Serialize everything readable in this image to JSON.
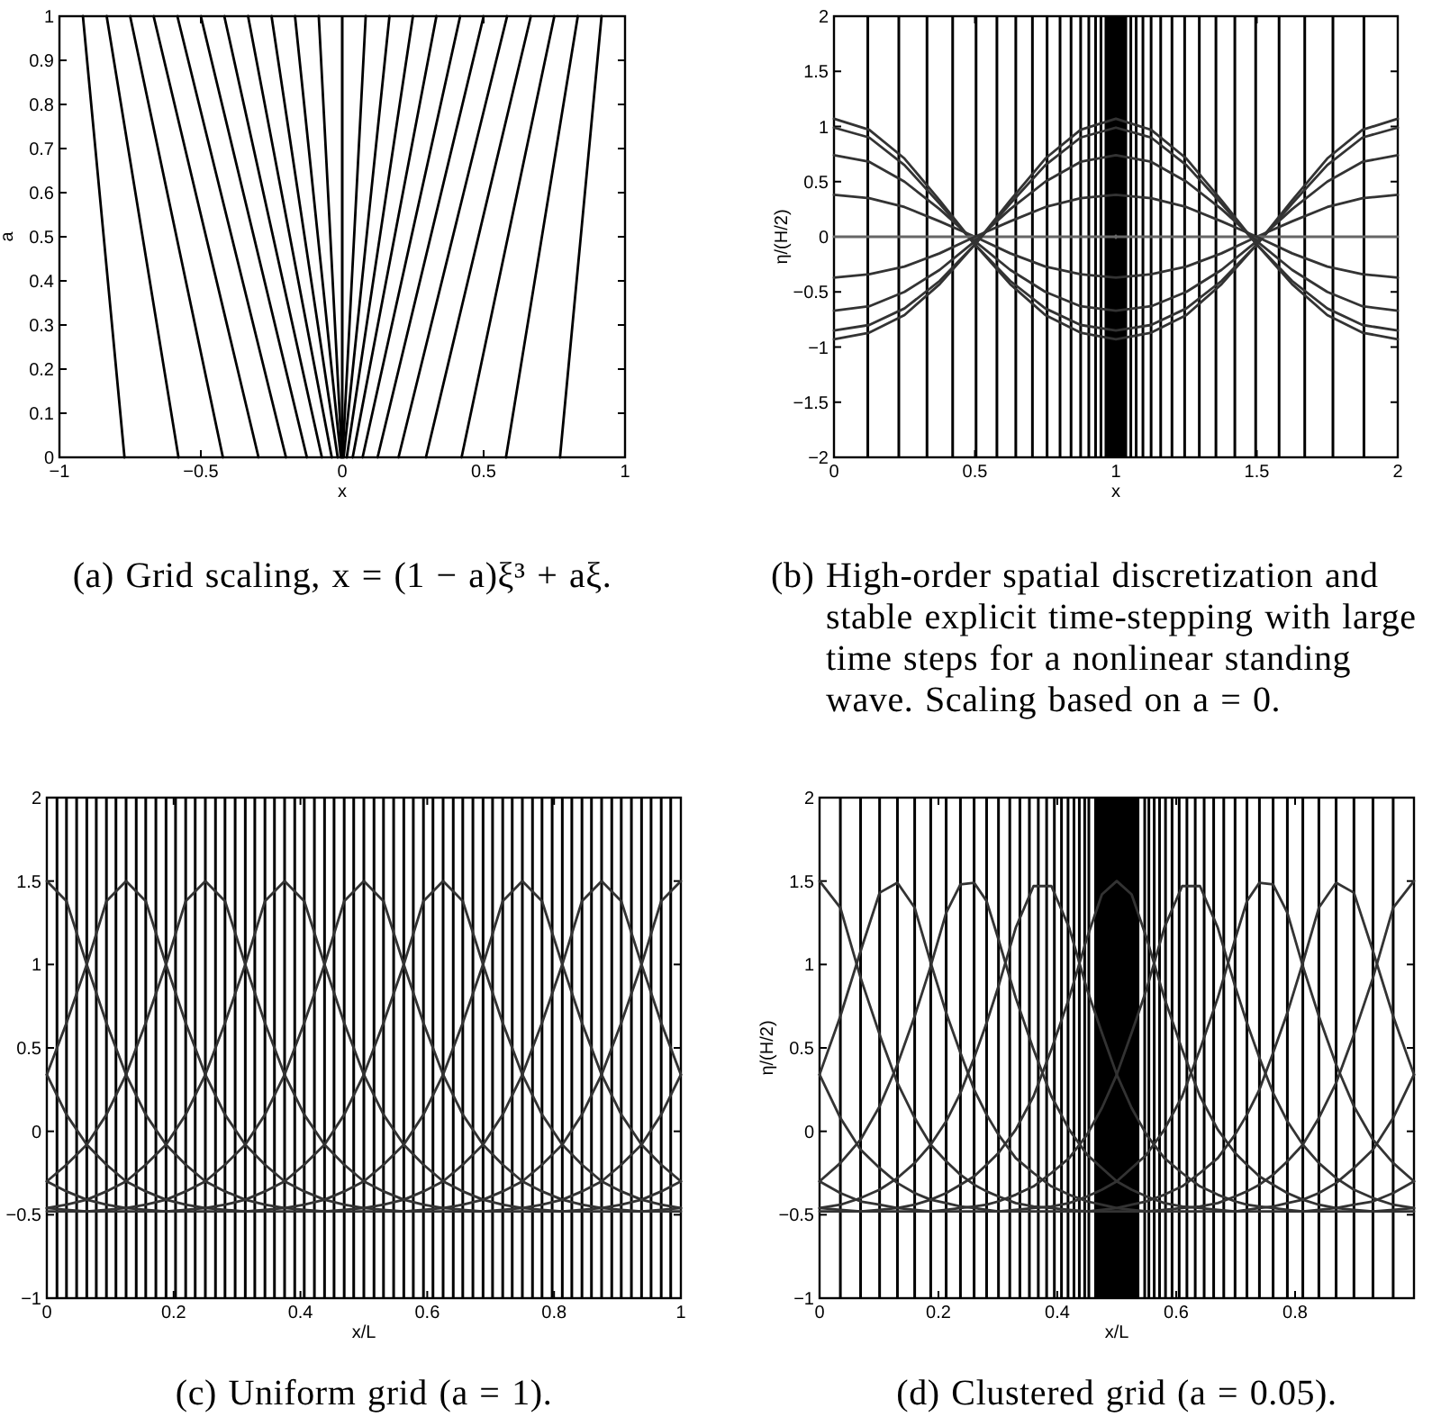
{
  "chart_data": [
    {
      "type": "line",
      "xlim": [
        -1,
        1
      ],
      "ylim": [
        0,
        1
      ],
      "xticks": [
        -1,
        -0.5,
        0,
        0.5,
        1
      ],
      "yticks": [
        0,
        0.1,
        0.2,
        0.3,
        0.4,
        0.5,
        0.6,
        0.7,
        0.8,
        0.9,
        1
      ],
      "xlabel": "x",
      "ylabel": "a",
      "annotations": [
        "(a) Grid scaling, x = (1 − a)ξ³ + aξ."
      ],
      "ref_lines": [
        {
          "axis": "x",
          "value": 0
        }
      ],
      "series": [
        {
          "color": "#000000",
          "x": [
            -0.77,
            -0.917
          ],
          "values": [
            0,
            1
          ]
        },
        {
          "color": "#000000",
          "x": [
            -0.579,
            -0.833
          ],
          "values": [
            0,
            1
          ]
        },
        {
          "color": "#000000",
          "x": [
            -0.422,
            -0.75
          ],
          "values": [
            0,
            1
          ]
        },
        {
          "color": "#000000",
          "x": [
            -0.296,
            -0.667
          ],
          "values": [
            0,
            1
          ]
        },
        {
          "color": "#000000",
          "x": [
            -0.199,
            -0.583
          ],
          "values": [
            0,
            1
          ]
        },
        {
          "color": "#000000",
          "x": [
            -0.125,
            -0.5
          ],
          "values": [
            0,
            1
          ]
        },
        {
          "color": "#000000",
          "x": [
            -0.072,
            -0.417
          ],
          "values": [
            0,
            1
          ]
        },
        {
          "color": "#000000",
          "x": [
            -0.037,
            -0.333
          ],
          "values": [
            0,
            1
          ]
        },
        {
          "color": "#000000",
          "x": [
            -0.016,
            -0.25
          ],
          "values": [
            0,
            1
          ]
        },
        {
          "color": "#000000",
          "x": [
            -0.005,
            -0.167
          ],
          "values": [
            0,
            1
          ]
        },
        {
          "color": "#000000",
          "x": [
            -0.001,
            -0.083
          ],
          "values": [
            0,
            1
          ]
        },
        {
          "color": "#000000",
          "x": [
            0.001,
            0.083
          ],
          "values": [
            0,
            1
          ]
        },
        {
          "color": "#000000",
          "x": [
            0.005,
            0.167
          ],
          "values": [
            0,
            1
          ]
        },
        {
          "color": "#000000",
          "x": [
            0.016,
            0.25
          ],
          "values": [
            0,
            1
          ]
        },
        {
          "color": "#000000",
          "x": [
            0.037,
            0.333
          ],
          "values": [
            0,
            1
          ]
        },
        {
          "color": "#000000",
          "x": [
            0.072,
            0.417
          ],
          "values": [
            0,
            1
          ]
        },
        {
          "color": "#000000",
          "x": [
            0.125,
            0.5
          ],
          "values": [
            0,
            1
          ]
        },
        {
          "color": "#000000",
          "x": [
            0.199,
            0.583
          ],
          "values": [
            0,
            1
          ]
        },
        {
          "color": "#000000",
          "x": [
            0.296,
            0.667
          ],
          "values": [
            0,
            1
          ]
        },
        {
          "color": "#000000",
          "x": [
            0.422,
            0.75
          ],
          "values": [
            0,
            1
          ]
        },
        {
          "color": "#000000",
          "x": [
            0.579,
            0.833
          ],
          "values": [
            0,
            1
          ]
        },
        {
          "color": "#000000",
          "x": [
            0.77,
            0.917
          ],
          "values": [
            0,
            1
          ]
        }
      ]
    },
    {
      "type": "line",
      "xlim": [
        0,
        2
      ],
      "ylim": [
        -2,
        2
      ],
      "xticks": [
        0,
        0.5,
        1,
        1.5,
        2
      ],
      "yticks": [
        -2,
        -1.5,
        -1,
        -0.5,
        0,
        0.5,
        1,
        1.5,
        2
      ],
      "xlabel": "x",
      "ylabel": "η/(H/2)",
      "annotations": [
        "(b) High-order spatial discretization and stable explicit time-stepping with large time steps for a nonlinear standing wave. Scaling based on a = 0."
      ],
      "bands": [
        {
          "axis": "x",
          "from": 0.96,
          "to": 1.04,
          "color": "#000000"
        }
      ],
      "ref_lines": [
        {
          "axis": "x",
          "value": 0.12
        },
        {
          "axis": "x",
          "value": 0.23
        },
        {
          "axis": "x",
          "value": 0.33
        },
        {
          "axis": "x",
          "value": 0.421
        },
        {
          "axis": "x",
          "value": 0.504
        },
        {
          "axis": "x",
          "value": 0.578
        },
        {
          "axis": "x",
          "value": 0.645
        },
        {
          "axis": "x",
          "value": 0.704
        },
        {
          "axis": "x",
          "value": 0.756
        },
        {
          "axis": "x",
          "value": 0.802
        },
        {
          "axis": "x",
          "value": 0.841
        },
        {
          "axis": "x",
          "value": 0.875
        },
        {
          "axis": "x",
          "value": 0.904
        },
        {
          "axis": "x",
          "value": 0.928
        },
        {
          "axis": "x",
          "value": 0.947
        },
        {
          "axis": "x",
          "value": 1.053
        },
        {
          "axis": "x",
          "value": 1.072
        },
        {
          "axis": "x",
          "value": 1.096
        },
        {
          "axis": "x",
          "value": 1.125
        },
        {
          "axis": "x",
          "value": 1.159
        },
        {
          "axis": "x",
          "value": 1.199
        },
        {
          "axis": "x",
          "value": 1.244
        },
        {
          "axis": "x",
          "value": 1.296
        },
        {
          "axis": "x",
          "value": 1.355
        },
        {
          "axis": "x",
          "value": 1.422
        },
        {
          "axis": "x",
          "value": 1.496
        },
        {
          "axis": "x",
          "value": 1.579
        },
        {
          "axis": "x",
          "value": 1.67
        },
        {
          "axis": "x",
          "value": 1.77
        },
        {
          "axis": "x",
          "value": 1.88
        }
      ],
      "x": [
        0,
        0.125,
        0.25,
        0.375,
        0.5,
        0.625,
        0.75,
        0.875,
        1,
        1.125,
        1.25,
        1.375,
        1.5,
        1.625,
        1.75,
        1.875,
        2
      ],
      "series": [
        {
          "color": "#333333",
          "values": [
            1.07,
            0.97,
            0.71,
            0.33,
            -0.07,
            -0.43,
            -0.71,
            -0.87,
            -0.93,
            -0.87,
            -0.71,
            -0.43,
            -0.07,
            0.33,
            0.71,
            0.97,
            1.07
          ]
        },
        {
          "color": "#333333",
          "values": [
            0.99,
            0.9,
            0.65,
            0.3,
            -0.07,
            -0.4,
            -0.65,
            -0.8,
            -0.85,
            -0.8,
            -0.65,
            -0.4,
            -0.07,
            0.3,
            0.65,
            0.9,
            0.99
          ]
        },
        {
          "color": "#333333",
          "values": [
            0.74,
            0.68,
            0.5,
            0.25,
            -0.04,
            -0.3,
            -0.5,
            -0.63,
            -0.67,
            -0.63,
            -0.5,
            -0.3,
            -0.04,
            0.25,
            0.5,
            0.68,
            0.74
          ]
        },
        {
          "color": "#333333",
          "values": [
            0.38,
            0.35,
            0.27,
            0.14,
            0,
            -0.15,
            -0.27,
            -0.34,
            -0.37,
            -0.34,
            -0.27,
            -0.15,
            0,
            0.14,
            0.27,
            0.35,
            0.38
          ]
        },
        {
          "color": "#666666",
          "values": [
            0,
            0,
            0,
            0,
            0,
            0,
            0,
            0,
            0,
            0,
            0,
            0,
            0,
            0,
            0,
            0,
            0
          ]
        },
        {
          "color": "#333333",
          "values": [
            -0.37,
            -0.34,
            -0.27,
            -0.15,
            0,
            0.14,
            0.27,
            0.35,
            0.38,
            0.35,
            0.27,
            0.14,
            0,
            -0.15,
            -0.27,
            -0.34,
            -0.37
          ]
        },
        {
          "color": "#333333",
          "values": [
            -0.67,
            -0.63,
            -0.5,
            -0.3,
            -0.04,
            0.25,
            0.5,
            0.68,
            0.74,
            0.68,
            0.5,
            0.25,
            -0.04,
            -0.3,
            -0.5,
            -0.63,
            -0.67
          ]
        },
        {
          "color": "#333333",
          "values": [
            -0.85,
            -0.8,
            -0.65,
            -0.4,
            -0.07,
            0.3,
            0.65,
            0.9,
            0.99,
            0.9,
            0.65,
            0.3,
            -0.07,
            -0.4,
            -0.65,
            -0.8,
            -0.85
          ]
        },
        {
          "color": "#333333",
          "values": [
            -0.93,
            -0.87,
            -0.71,
            -0.43,
            -0.07,
            0.33,
            0.71,
            0.97,
            1.07,
            0.97,
            0.71,
            0.33,
            -0.07,
            -0.43,
            -0.71,
            -0.87,
            -0.93
          ]
        }
      ]
    },
    {
      "type": "line",
      "xlim": [
        0,
        1
      ],
      "ylim": [
        -1,
        2
      ],
      "xticks": [
        0,
        0.2,
        0.4,
        0.6,
        0.8,
        1
      ],
      "yticks": [
        -1,
        -0.5,
        0,
        0.5,
        1,
        1.5,
        2
      ],
      "xlabel": "x/L",
      "annotations": [
        "(c) Uniform grid (a = 1)."
      ],
      "ref_lines": [
        {
          "axis": "x",
          "value": 0.016
        },
        {
          "axis": "x",
          "value": 0.031
        },
        {
          "axis": "x",
          "value": 0.047
        },
        {
          "axis": "x",
          "value": 0.063
        },
        {
          "axis": "x",
          "value": 0.078
        },
        {
          "axis": "x",
          "value": 0.094
        },
        {
          "axis": "x",
          "value": 0.109
        },
        {
          "axis": "x",
          "value": 0.125
        },
        {
          "axis": "x",
          "value": 0.141
        },
        {
          "axis": "x",
          "value": 0.156
        },
        {
          "axis": "x",
          "value": 0.172
        },
        {
          "axis": "x",
          "value": 0.188
        },
        {
          "axis": "x",
          "value": 0.203
        },
        {
          "axis": "x",
          "value": 0.219
        },
        {
          "axis": "x",
          "value": 0.234
        },
        {
          "axis": "x",
          "value": 0.25
        },
        {
          "axis": "x",
          "value": 0.266
        },
        {
          "axis": "x",
          "value": 0.281
        },
        {
          "axis": "x",
          "value": 0.297
        },
        {
          "axis": "x",
          "value": 0.313
        },
        {
          "axis": "x",
          "value": 0.328
        },
        {
          "axis": "x",
          "value": 0.344
        },
        {
          "axis": "x",
          "value": 0.359
        },
        {
          "axis": "x",
          "value": 0.375
        },
        {
          "axis": "x",
          "value": 0.391
        },
        {
          "axis": "x",
          "value": 0.406
        },
        {
          "axis": "x",
          "value": 0.422
        },
        {
          "axis": "x",
          "value": 0.438
        },
        {
          "axis": "x",
          "value": 0.453
        },
        {
          "axis": "x",
          "value": 0.469
        },
        {
          "axis": "x",
          "value": 0.484
        },
        {
          "axis": "x",
          "value": 0.5
        },
        {
          "axis": "x",
          "value": 0.516
        },
        {
          "axis": "x",
          "value": 0.531
        },
        {
          "axis": "x",
          "value": 0.547
        },
        {
          "axis": "x",
          "value": 0.563
        },
        {
          "axis": "x",
          "value": 0.578
        },
        {
          "axis": "x",
          "value": 0.594
        },
        {
          "axis": "x",
          "value": 0.609
        },
        {
          "axis": "x",
          "value": 0.625
        },
        {
          "axis": "x",
          "value": 0.641
        },
        {
          "axis": "x",
          "value": 0.656
        },
        {
          "axis": "x",
          "value": 0.672
        },
        {
          "axis": "x",
          "value": 0.688
        },
        {
          "axis": "x",
          "value": 0.703
        },
        {
          "axis": "x",
          "value": 0.719
        },
        {
          "axis": "x",
          "value": 0.734
        },
        {
          "axis": "x",
          "value": 0.75
        },
        {
          "axis": "x",
          "value": 0.766
        },
        {
          "axis": "x",
          "value": 0.781
        },
        {
          "axis": "x",
          "value": 0.797
        },
        {
          "axis": "x",
          "value": 0.813
        },
        {
          "axis": "x",
          "value": 0.828
        },
        {
          "axis": "x",
          "value": 0.844
        },
        {
          "axis": "x",
          "value": 0.859
        },
        {
          "axis": "x",
          "value": 0.875
        },
        {
          "axis": "x",
          "value": 0.891
        },
        {
          "axis": "x",
          "value": 0.906
        },
        {
          "axis": "x",
          "value": 0.922
        },
        {
          "axis": "x",
          "value": 0.938
        },
        {
          "axis": "x",
          "value": 0.953
        },
        {
          "axis": "x",
          "value": 0.969
        },
        {
          "axis": "x",
          "value": 0.984
        }
      ],
      "x": [
        0,
        0.031,
        0.063,
        0.094,
        0.125,
        0.156,
        0.188,
        0.219,
        0.25,
        0.281,
        0.313,
        0.344,
        0.375,
        0.406,
        0.438,
        0.469,
        0.5,
        0.531,
        0.563,
        0.594,
        0.625,
        0.656,
        0.688,
        0.719,
        0.75,
        0.781,
        0.813,
        0.844,
        0.875,
        0.906,
        0.938,
        0.969,
        1
      ],
      "series": [
        {
          "color": "#333333",
          "values": [
            1.5,
            1.38,
            1.0,
            0.65,
            0.34,
            0.1,
            -0.08,
            -0.2,
            -0.3,
            -0.36,
            -0.41,
            -0.44,
            -0.46,
            -0.47,
            -0.48,
            -0.48,
            -0.48,
            -0.48,
            -0.48,
            -0.47,
            -0.46,
            -0.44,
            -0.41,
            -0.36,
            -0.3,
            -0.2,
            -0.08,
            0.1,
            0.34,
            0.65,
            1.0,
            1.38,
            1.5
          ]
        },
        {
          "color": "#333333",
          "values": [
            0.34,
            0.65,
            1.0,
            1.38,
            1.5,
            1.38,
            1.0,
            0.65,
            0.34,
            0.1,
            -0.08,
            -0.2,
            -0.3,
            -0.36,
            -0.41,
            -0.44,
            -0.46,
            -0.47,
            -0.48,
            -0.48,
            -0.48,
            -0.48,
            -0.48,
            -0.47,
            -0.46,
            -0.44,
            -0.41,
            -0.36,
            -0.3,
            -0.2,
            -0.08,
            0.1,
            0.34
          ]
        },
        {
          "color": "#333333",
          "values": [
            -0.3,
            -0.2,
            -0.08,
            0.1,
            0.34,
            0.65,
            1.0,
            1.38,
            1.5,
            1.38,
            1.0,
            0.65,
            0.34,
            0.1,
            -0.08,
            -0.2,
            -0.3,
            -0.36,
            -0.41,
            -0.44,
            -0.46,
            -0.47,
            -0.48,
            -0.48,
            -0.48,
            -0.48,
            -0.48,
            -0.47,
            -0.46,
            -0.44,
            -0.41,
            -0.36,
            -0.3
          ]
        },
        {
          "color": "#333333",
          "values": [
            -0.46,
            -0.44,
            -0.41,
            -0.36,
            -0.3,
            -0.2,
            -0.08,
            0.1,
            0.34,
            0.65,
            1.0,
            1.38,
            1.5,
            1.38,
            1.0,
            0.65,
            0.34,
            0.1,
            -0.08,
            -0.2,
            -0.3,
            -0.36,
            -0.41,
            -0.44,
            -0.46,
            -0.47,
            -0.48,
            -0.48,
            -0.48,
            -0.48,
            -0.48,
            -0.47,
            -0.46
          ]
        },
        {
          "color": "#333333",
          "values": [
            -0.48,
            -0.48,
            -0.48,
            -0.47,
            -0.46,
            -0.44,
            -0.41,
            -0.36,
            -0.3,
            -0.2,
            -0.08,
            0.1,
            0.34,
            0.65,
            1.0,
            1.38,
            1.5,
            1.38,
            1.0,
            0.65,
            0.34,
            0.1,
            -0.08,
            -0.2,
            -0.3,
            -0.36,
            -0.41,
            -0.44,
            -0.46,
            -0.47,
            -0.48,
            -0.48,
            -0.48
          ]
        },
        {
          "color": "#333333",
          "values": [
            -0.46,
            -0.47,
            -0.48,
            -0.48,
            -0.48,
            -0.48,
            -0.48,
            -0.47,
            -0.46,
            -0.44,
            -0.41,
            -0.36,
            -0.3,
            -0.2,
            -0.08,
            0.1,
            0.34,
            0.65,
            1.0,
            1.38,
            1.5,
            1.38,
            1.0,
            0.65,
            0.34,
            0.1,
            -0.08,
            -0.2,
            -0.3,
            -0.36,
            -0.41,
            -0.44,
            -0.46
          ]
        },
        {
          "color": "#333333",
          "values": [
            -0.3,
            -0.36,
            -0.41,
            -0.44,
            -0.46,
            -0.47,
            -0.48,
            -0.48,
            -0.48,
            -0.48,
            -0.48,
            -0.47,
            -0.46,
            -0.44,
            -0.41,
            -0.36,
            -0.3,
            -0.2,
            -0.08,
            0.1,
            0.34,
            0.65,
            1.0,
            1.38,
            1.5,
            1.38,
            1.0,
            0.65,
            0.34,
            0.1,
            -0.08,
            -0.2,
            -0.3
          ]
        },
        {
          "color": "#333333",
          "values": [
            0.34,
            0.1,
            -0.08,
            -0.2,
            -0.3,
            -0.36,
            -0.41,
            -0.44,
            -0.46,
            -0.47,
            -0.48,
            -0.48,
            -0.48,
            -0.48,
            -0.48,
            -0.47,
            -0.46,
            -0.44,
            -0.41,
            -0.36,
            -0.3,
            -0.2,
            -0.08,
            0.1,
            0.34,
            0.65,
            1.0,
            1.38,
            1.5,
            1.38,
            1.0,
            0.65,
            0.34
          ]
        }
      ]
    },
    {
      "type": "line",
      "xlim": [
        0,
        1
      ],
      "ylim": [
        -1,
        2
      ],
      "xticks": [
        0,
        0.2,
        0.4,
        0.6,
        0.8
      ],
      "yticks": [
        -1,
        -0.5,
        0,
        0.5,
        1,
        1.5,
        2
      ],
      "xlabel": "x/L",
      "ylabel": "η/(H/2)",
      "annotations": [
        "(d) Clustered grid (a = 0.05)."
      ],
      "bands": [
        {
          "axis": "x",
          "from": 0.462,
          "to": 0.538,
          "color": "#000000"
        }
      ],
      "ref_lines": [
        {
          "axis": "x",
          "value": 0.035
        },
        {
          "axis": "x",
          "value": 0.069
        },
        {
          "axis": "x",
          "value": 0.101
        },
        {
          "axis": "x",
          "value": 0.131
        },
        {
          "axis": "x",
          "value": 0.16
        },
        {
          "axis": "x",
          "value": 0.187
        },
        {
          "axis": "x",
          "value": 0.213
        },
        {
          "axis": "x",
          "value": 0.237
        },
        {
          "axis": "x",
          "value": 0.26
        },
        {
          "axis": "x",
          "value": 0.281
        },
        {
          "axis": "x",
          "value": 0.301
        },
        {
          "axis": "x",
          "value": 0.32
        },
        {
          "axis": "x",
          "value": 0.337
        },
        {
          "axis": "x",
          "value": 0.353
        },
        {
          "axis": "x",
          "value": 0.368
        },
        {
          "axis": "x",
          "value": 0.382
        },
        {
          "axis": "x",
          "value": 0.395
        },
        {
          "axis": "x",
          "value": 0.407
        },
        {
          "axis": "x",
          "value": 0.418
        },
        {
          "axis": "x",
          "value": 0.428
        },
        {
          "axis": "x",
          "value": 0.437
        },
        {
          "axis": "x",
          "value": 0.446
        },
        {
          "axis": "x",
          "value": 0.453
        },
        {
          "axis": "x",
          "value": 0.547
        },
        {
          "axis": "x",
          "value": 0.554
        },
        {
          "axis": "x",
          "value": 0.563
        },
        {
          "axis": "x",
          "value": 0.572
        },
        {
          "axis": "x",
          "value": 0.582
        },
        {
          "axis": "x",
          "value": 0.593
        },
        {
          "axis": "x",
          "value": 0.605
        },
        {
          "axis": "x",
          "value": 0.618
        },
        {
          "axis": "x",
          "value": 0.632
        },
        {
          "axis": "x",
          "value": 0.647
        },
        {
          "axis": "x",
          "value": 0.663
        },
        {
          "axis": "x",
          "value": 0.68
        },
        {
          "axis": "x",
          "value": 0.699
        },
        {
          "axis": "x",
          "value": 0.719
        },
        {
          "axis": "x",
          "value": 0.74
        },
        {
          "axis": "x",
          "value": 0.763
        },
        {
          "axis": "x",
          "value": 0.787
        },
        {
          "axis": "x",
          "value": 0.813
        },
        {
          "axis": "x",
          "value": 0.84
        },
        {
          "axis": "x",
          "value": 0.869
        },
        {
          "axis": "x",
          "value": 0.899
        },
        {
          "axis": "x",
          "value": 0.931
        },
        {
          "axis": "x",
          "value": 0.965
        }
      ],
      "x": [
        0,
        0.035,
        0.069,
        0.101,
        0.131,
        0.16,
        0.187,
        0.213,
        0.237,
        0.26,
        0.281,
        0.301,
        0.33,
        0.36,
        0.39,
        0.42,
        0.45,
        0.475,
        0.5,
        0.525,
        0.55,
        0.58,
        0.61,
        0.64,
        0.67,
        0.699,
        0.719,
        0.74,
        0.763,
        0.787,
        0.813,
        0.84,
        0.869,
        0.899,
        0.931,
        0.965,
        1
      ],
      "series": [
        {
          "color": "#333333",
          "values": [
            1.5,
            1.34,
            0.92,
            0.58,
            0.29,
            0.08,
            -0.08,
            -0.18,
            -0.26,
            -0.32,
            -0.36,
            -0.39,
            -0.43,
            -0.45,
            -0.46,
            -0.47,
            -0.48,
            -0.48,
            -0.48,
            -0.48,
            -0.48,
            -0.47,
            -0.46,
            -0.45,
            -0.43,
            -0.39,
            -0.36,
            -0.32,
            -0.26,
            -0.18,
            -0.08,
            0.08,
            0.29,
            0.58,
            0.92,
            1.34,
            1.5
          ]
        },
        {
          "color": "#333333",
          "values": [
            0.34,
            0.69,
            1.08,
            1.43,
            1.49,
            1.34,
            1.01,
            0.71,
            0.47,
            0.25,
            0.1,
            -0.02,
            -0.16,
            -0.25,
            -0.33,
            -0.38,
            -0.42,
            -0.44,
            -0.46,
            -0.47,
            -0.48,
            -0.48,
            -0.48,
            -0.48,
            -0.48,
            -0.48,
            -0.47,
            -0.46,
            -0.45,
            -0.43,
            -0.41,
            -0.37,
            -0.31,
            -0.22,
            -0.11,
            0.08,
            0.34
          ]
        },
        {
          "color": "#333333",
          "values": [
            -0.3,
            -0.19,
            -0.05,
            0.15,
            0.4,
            0.69,
            0.99,
            1.31,
            1.48,
            1.49,
            1.38,
            1.15,
            0.8,
            0.49,
            0.21,
            0.01,
            -0.14,
            -0.22,
            -0.3,
            -0.35,
            -0.39,
            -0.43,
            -0.45,
            -0.46,
            -0.47,
            -0.48,
            -0.48,
            -0.48,
            -0.48,
            -0.48,
            -0.48,
            -0.47,
            -0.46,
            -0.44,
            -0.42,
            -0.37,
            -0.3
          ]
        },
        {
          "color": "#333333",
          "values": [
            -0.46,
            -0.44,
            -0.4,
            -0.35,
            -0.28,
            -0.19,
            -0.08,
            0.06,
            0.23,
            0.44,
            0.65,
            0.87,
            1.22,
            1.47,
            1.47,
            1.22,
            0.85,
            0.59,
            0.34,
            0.14,
            -0.02,
            -0.16,
            -0.25,
            -0.33,
            -0.38,
            -0.42,
            -0.44,
            -0.45,
            -0.46,
            -0.47,
            -0.48,
            -0.48,
            -0.48,
            -0.48,
            -0.48,
            -0.47,
            -0.46
          ]
        },
        {
          "color": "#333333",
          "values": [
            -0.48,
            -0.48,
            -0.48,
            -0.47,
            -0.46,
            -0.44,
            -0.41,
            -0.37,
            -0.32,
            -0.27,
            -0.2,
            -0.13,
            0.01,
            0.21,
            0.49,
            0.8,
            1.16,
            1.42,
            1.5,
            1.42,
            1.16,
            0.8,
            0.49,
            0.21,
            0.01,
            -0.13,
            -0.2,
            -0.27,
            -0.32,
            -0.37,
            -0.41,
            -0.44,
            -0.46,
            -0.47,
            -0.48,
            -0.48,
            -0.48
          ]
        },
        {
          "color": "#333333",
          "values": [
            -0.46,
            -0.47,
            -0.48,
            -0.48,
            -0.48,
            -0.48,
            -0.48,
            -0.47,
            -0.46,
            -0.45,
            -0.44,
            -0.42,
            -0.38,
            -0.33,
            -0.25,
            -0.16,
            -0.02,
            0.14,
            0.34,
            0.59,
            0.85,
            1.22,
            1.47,
            1.47,
            1.22,
            0.87,
            0.65,
            0.44,
            0.23,
            0.06,
            -0.08,
            -0.19,
            -0.28,
            -0.35,
            -0.4,
            -0.44,
            -0.46
          ]
        },
        {
          "color": "#333333",
          "values": [
            -0.3,
            -0.37,
            -0.42,
            -0.44,
            -0.46,
            -0.47,
            -0.48,
            -0.48,
            -0.48,
            -0.48,
            -0.48,
            -0.48,
            -0.47,
            -0.46,
            -0.45,
            -0.43,
            -0.39,
            -0.35,
            -0.3,
            -0.22,
            -0.14,
            0.01,
            0.21,
            0.49,
            0.8,
            1.15,
            1.38,
            1.49,
            1.48,
            1.31,
            0.99,
            0.69,
            0.4,
            0.15,
            -0.05,
            -0.19,
            -0.3
          ]
        },
        {
          "color": "#333333",
          "values": [
            0.34,
            0.08,
            -0.11,
            -0.22,
            -0.31,
            -0.37,
            -0.41,
            -0.43,
            -0.45,
            -0.46,
            -0.47,
            -0.48,
            -0.48,
            -0.48,
            -0.48,
            -0.48,
            -0.48,
            -0.47,
            -0.46,
            -0.44,
            -0.42,
            -0.38,
            -0.33,
            -0.25,
            -0.16,
            -0.02,
            0.1,
            0.25,
            0.47,
            0.71,
            1.01,
            1.34,
            1.49,
            1.43,
            1.08,
            0.69,
            0.34
          ]
        }
      ]
    }
  ]
}
